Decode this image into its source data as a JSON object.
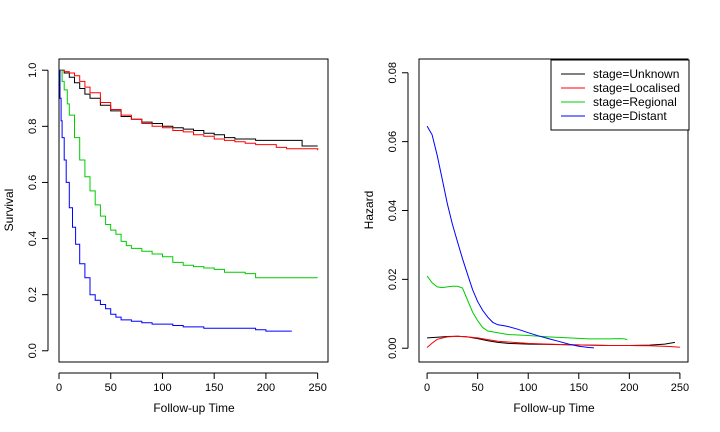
{
  "chart_data": [
    {
      "type": "line",
      "xlabel": "Follow-up Time",
      "ylabel": "Survival",
      "xlim": [
        0,
        260
      ],
      "ylim": [
        -0.04,
        1.04
      ],
      "xticks": [
        "0",
        "50",
        "100",
        "150",
        "200",
        "250"
      ],
      "yticks": [
        "0.0",
        "0.2",
        "0.4",
        "0.6",
        "0.8",
        "1.0"
      ],
      "step": true,
      "series": [
        {
          "name": "stage=Unknown",
          "color": "#000000",
          "points": [
            [
              0,
              1.0
            ],
            [
              5,
              0.99
            ],
            [
              10,
              0.975
            ],
            [
              15,
              0.955
            ],
            [
              20,
              0.935
            ],
            [
              25,
              0.915
            ],
            [
              30,
              0.9
            ],
            [
              40,
              0.875
            ],
            [
              50,
              0.855
            ],
            [
              60,
              0.835
            ],
            [
              70,
              0.825
            ],
            [
              80,
              0.815
            ],
            [
              90,
              0.81
            ],
            [
              100,
              0.8
            ],
            [
              110,
              0.795
            ],
            [
              120,
              0.79
            ],
            [
              130,
              0.785
            ],
            [
              140,
              0.775
            ],
            [
              150,
              0.77
            ],
            [
              160,
              0.76
            ],
            [
              170,
              0.755
            ],
            [
              180,
              0.755
            ],
            [
              190,
              0.75
            ],
            [
              230,
              0.75
            ],
            [
              235,
              0.73
            ],
            [
              250,
              0.73
            ]
          ]
        },
        {
          "name": "stage=Localised",
          "color": "#ff0000",
          "points": [
            [
              0,
              1.0
            ],
            [
              5,
              0.995
            ],
            [
              10,
              0.99
            ],
            [
              15,
              0.98
            ],
            [
              20,
              0.96
            ],
            [
              25,
              0.94
            ],
            [
              30,
              0.92
            ],
            [
              40,
              0.885
            ],
            [
              50,
              0.86
            ],
            [
              60,
              0.84
            ],
            [
              70,
              0.825
            ],
            [
              80,
              0.81
            ],
            [
              90,
              0.8
            ],
            [
              100,
              0.795
            ],
            [
              110,
              0.785
            ],
            [
              120,
              0.78
            ],
            [
              130,
              0.77
            ],
            [
              140,
              0.765
            ],
            [
              150,
              0.755
            ],
            [
              160,
              0.75
            ],
            [
              170,
              0.745
            ],
            [
              180,
              0.74
            ],
            [
              190,
              0.735
            ],
            [
              200,
              0.735
            ],
            [
              210,
              0.725
            ],
            [
              220,
              0.72
            ],
            [
              230,
              0.72
            ],
            [
              250,
              0.715
            ]
          ]
        },
        {
          "name": "stage=Regional",
          "color": "#00cc00",
          "points": [
            [
              0,
              1.0
            ],
            [
              3,
              0.96
            ],
            [
              5,
              0.93
            ],
            [
              8,
              0.88
            ],
            [
              10,
              0.84
            ],
            [
              15,
              0.76
            ],
            [
              20,
              0.68
            ],
            [
              25,
              0.62
            ],
            [
              30,
              0.57
            ],
            [
              35,
              0.52
            ],
            [
              40,
              0.48
            ],
            [
              45,
              0.45
            ],
            [
              50,
              0.43
            ],
            [
              55,
              0.415
            ],
            [
              60,
              0.39
            ],
            [
              65,
              0.375
            ],
            [
              70,
              0.365
            ],
            [
              80,
              0.355
            ],
            [
              90,
              0.345
            ],
            [
              100,
              0.335
            ],
            [
              110,
              0.315
            ],
            [
              120,
              0.305
            ],
            [
              130,
              0.3
            ],
            [
              140,
              0.295
            ],
            [
              150,
              0.29
            ],
            [
              160,
              0.28
            ],
            [
              180,
              0.275
            ],
            [
              190,
              0.26
            ],
            [
              200,
              0.26
            ],
            [
              250,
              0.26
            ]
          ]
        },
        {
          "name": "stage=Distant",
          "color": "#0000ff",
          "points": [
            [
              0,
              1.0
            ],
            [
              1,
              0.9
            ],
            [
              2,
              0.82
            ],
            [
              3,
              0.76
            ],
            [
              5,
              0.68
            ],
            [
              7,
              0.6
            ],
            [
              10,
              0.51
            ],
            [
              13,
              0.44
            ],
            [
              16,
              0.38
            ],
            [
              20,
              0.31
            ],
            [
              25,
              0.26
            ],
            [
              30,
              0.2
            ],
            [
              35,
              0.18
            ],
            [
              40,
              0.165
            ],
            [
              45,
              0.15
            ],
            [
              50,
              0.13
            ],
            [
              55,
              0.12
            ],
            [
              60,
              0.11
            ],
            [
              70,
              0.105
            ],
            [
              80,
              0.1
            ],
            [
              90,
              0.095
            ],
            [
              100,
              0.095
            ],
            [
              110,
              0.09
            ],
            [
              120,
              0.085
            ],
            [
              130,
              0.085
            ],
            [
              140,
              0.08
            ],
            [
              190,
              0.075
            ],
            [
              200,
              0.07
            ],
            [
              225,
              0.07
            ]
          ]
        }
      ]
    },
    {
      "type": "line",
      "xlabel": "Follow-up Time",
      "ylabel": "Hazard",
      "xlim": [
        -8,
        258
      ],
      "ylim": [
        -0.004,
        0.084
      ],
      "xticks": [
        "0",
        "50",
        "100",
        "150",
        "200",
        "250"
      ],
      "yticks": [
        "0.00",
        "0.02",
        "0.04",
        "0.06",
        "0.08"
      ],
      "legend_position": "top-right",
      "series": [
        {
          "name": "stage=Unknown",
          "color": "#000000",
          "points": [
            [
              0,
              0.003
            ],
            [
              10,
              0.0032
            ],
            [
              20,
              0.0034
            ],
            [
              30,
              0.0035
            ],
            [
              40,
              0.0033
            ],
            [
              50,
              0.0028
            ],
            [
              60,
              0.0022
            ],
            [
              70,
              0.0017
            ],
            [
              80,
              0.0014
            ],
            [
              100,
              0.0012
            ],
            [
              120,
              0.0011
            ],
            [
              140,
              0.001
            ],
            [
              160,
              0.0009
            ],
            [
              180,
              0.0008
            ],
            [
              200,
              0.0008
            ],
            [
              220,
              0.0009
            ],
            [
              235,
              0.0012
            ],
            [
              245,
              0.0017
            ]
          ]
        },
        {
          "name": "stage=Localised",
          "color": "#ff0000",
          "points": [
            [
              0,
              0.0002
            ],
            [
              5,
              0.0015
            ],
            [
              10,
              0.0026
            ],
            [
              20,
              0.0033
            ],
            [
              30,
              0.0035
            ],
            [
              40,
              0.0033
            ],
            [
              50,
              0.003
            ],
            [
              60,
              0.0025
            ],
            [
              70,
              0.002
            ],
            [
              80,
              0.0018
            ],
            [
              100,
              0.0014
            ],
            [
              120,
              0.0012
            ],
            [
              140,
              0.001
            ],
            [
              160,
              0.0009
            ],
            [
              180,
              0.0008
            ],
            [
              200,
              0.0008
            ],
            [
              220,
              0.0007
            ],
            [
              240,
              0.0005
            ],
            [
              250,
              0.0003
            ]
          ]
        },
        {
          "name": "stage=Regional",
          "color": "#00cc00",
          "points": [
            [
              0,
              0.021
            ],
            [
              5,
              0.019
            ],
            [
              10,
              0.0178
            ],
            [
              15,
              0.0176
            ],
            [
              20,
              0.0178
            ],
            [
              25,
              0.018
            ],
            [
              30,
              0.018
            ],
            [
              35,
              0.0175
            ],
            [
              40,
              0.014
            ],
            [
              45,
              0.0105
            ],
            [
              50,
              0.008
            ],
            [
              55,
              0.006
            ],
            [
              60,
              0.005
            ],
            [
              70,
              0.0045
            ],
            [
              80,
              0.004
            ],
            [
              100,
              0.0037
            ],
            [
              120,
              0.0033
            ],
            [
              140,
              0.003
            ],
            [
              160,
              0.0027
            ],
            [
              180,
              0.0027
            ],
            [
              190,
              0.0028
            ],
            [
              195,
              0.0027
            ],
            [
              198,
              0.0025
            ]
          ]
        },
        {
          "name": "stage=Distant",
          "color": "#0000ff",
          "points": [
            [
              0,
              0.0645
            ],
            [
              5,
              0.062
            ],
            [
              10,
              0.056
            ],
            [
              15,
              0.049
            ],
            [
              20,
              0.042
            ],
            [
              25,
              0.036
            ],
            [
              30,
              0.031
            ],
            [
              35,
              0.026
            ],
            [
              40,
              0.0215
            ],
            [
              45,
              0.017
            ],
            [
              50,
              0.0135
            ],
            [
              55,
              0.011
            ],
            [
              60,
              0.009
            ],
            [
              65,
              0.0075
            ],
            [
              70,
              0.0068
            ],
            [
              75,
              0.0066
            ],
            [
              80,
              0.0063
            ],
            [
              90,
              0.0055
            ],
            [
              100,
              0.0045
            ],
            [
              110,
              0.0036
            ],
            [
              120,
              0.0028
            ],
            [
              130,
              0.002
            ],
            [
              140,
              0.0012
            ],
            [
              150,
              0.0006
            ],
            [
              160,
              0.0002
            ],
            [
              165,
              0.0001
            ]
          ]
        }
      ]
    }
  ]
}
